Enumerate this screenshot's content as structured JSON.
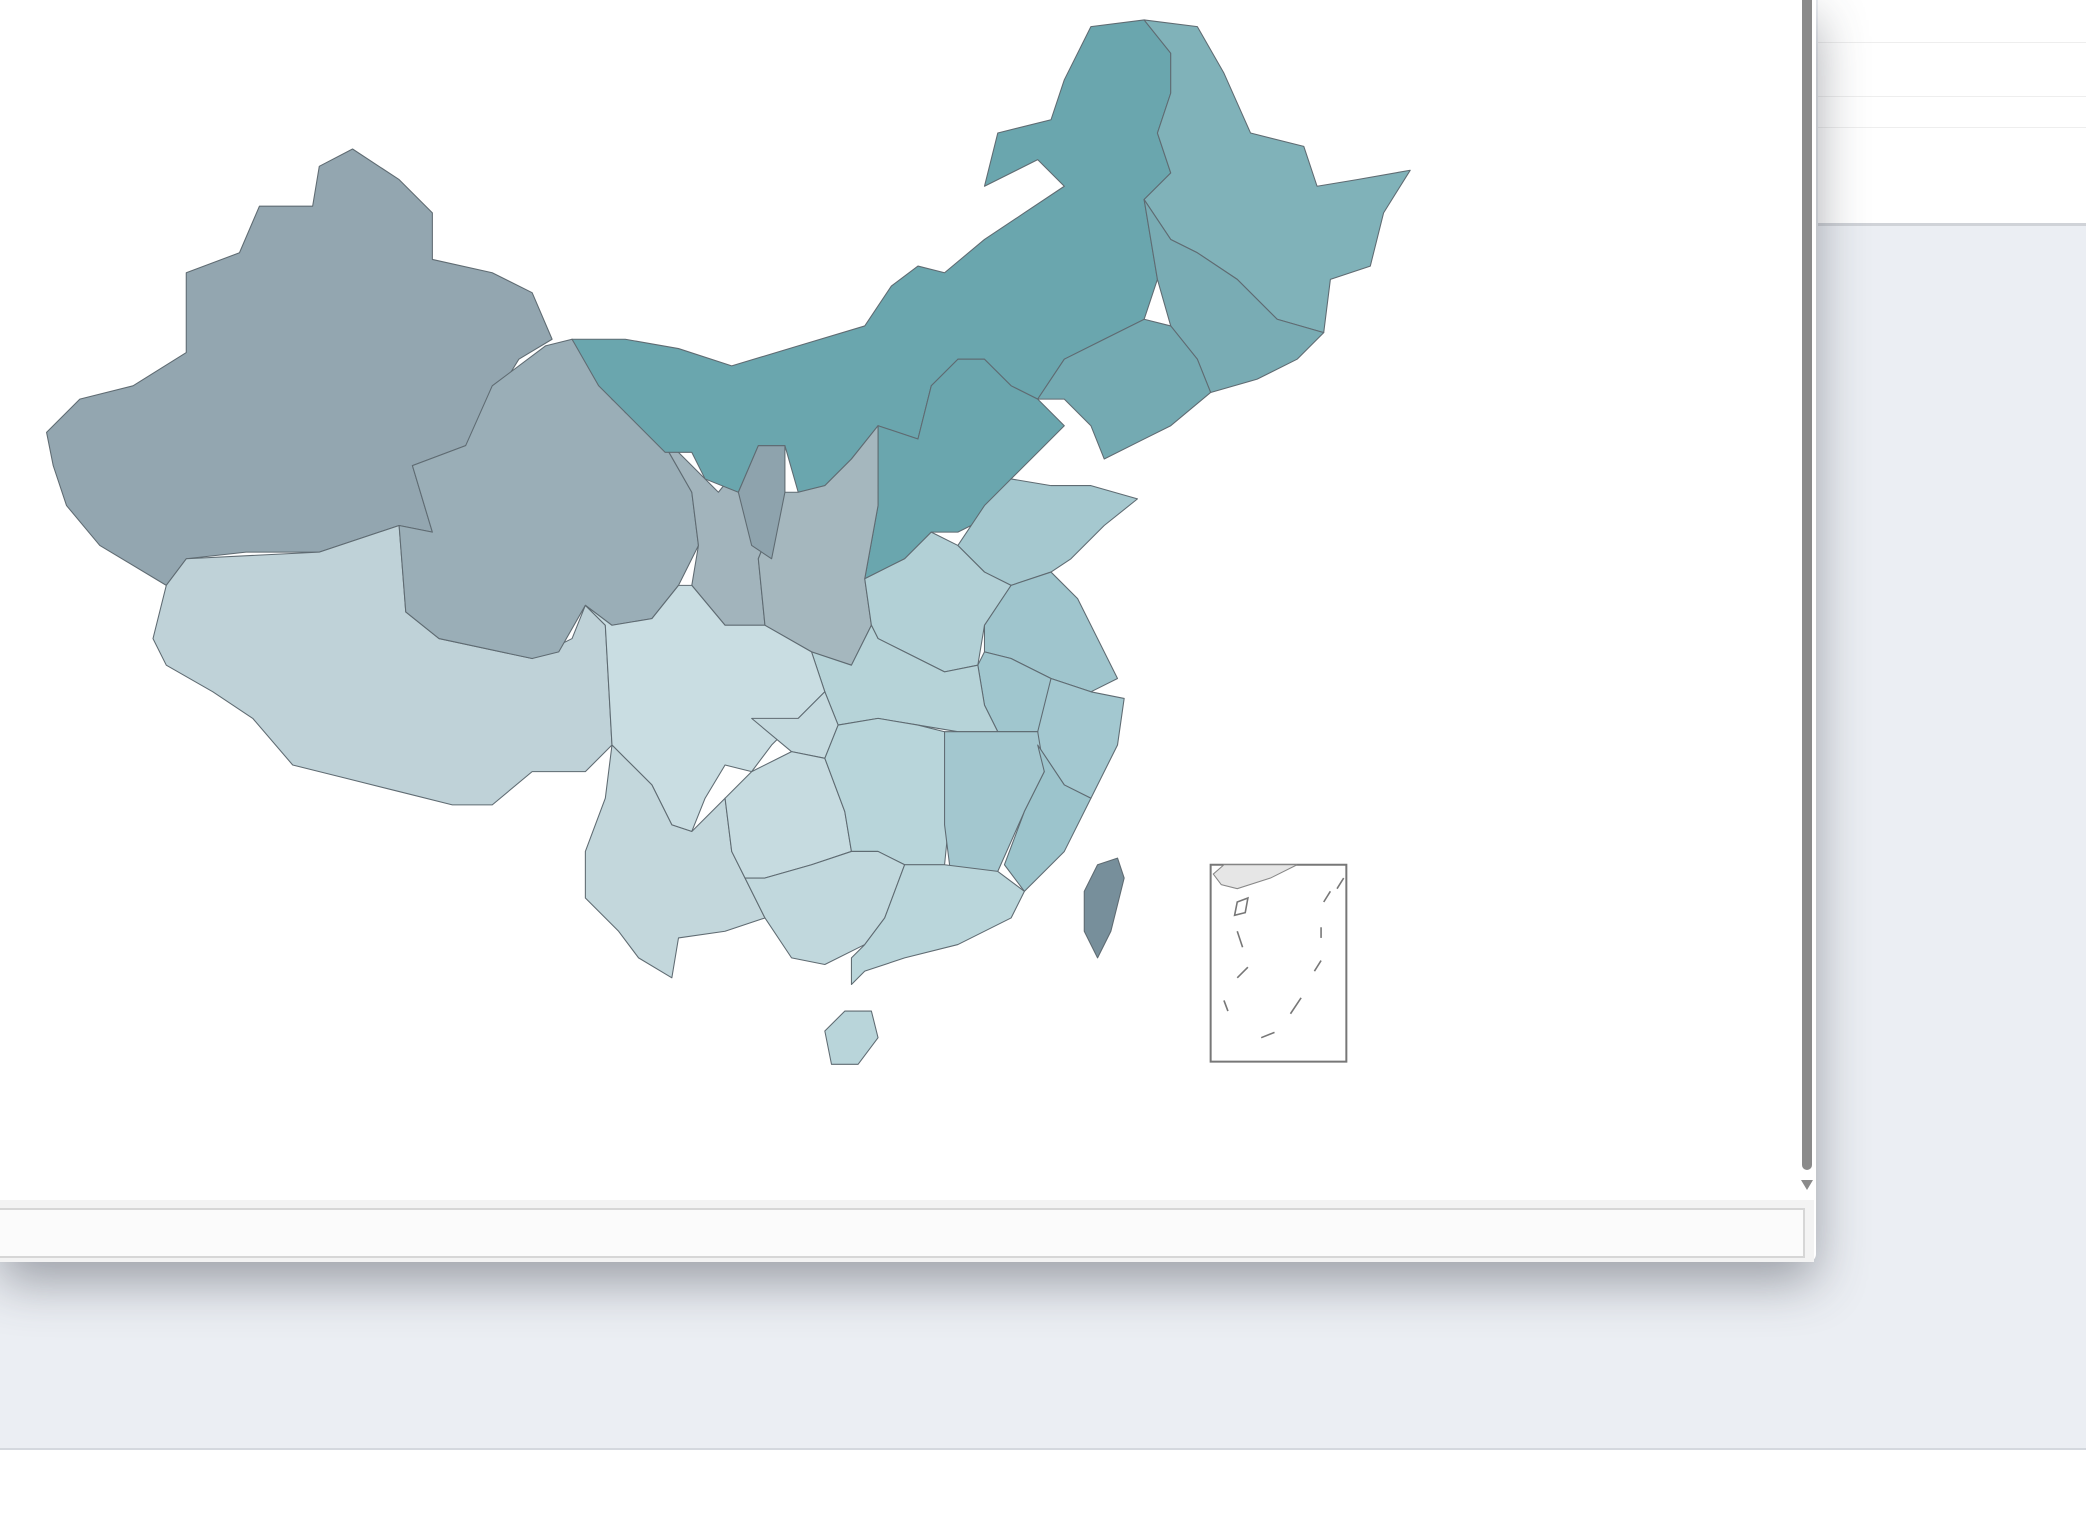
{
  "map": {
    "stroke_color": "#5f6b72",
    "regions": {
      "xinjiang": "#93a6b0",
      "tibet": "#bfd2d8",
      "qinghai": "#9aaeb7",
      "gansu": "#a2b4bc",
      "inner-mongolia": "#6aa6ae",
      "heilongjiang": "#80b2b9",
      "jilin": "#79acb4",
      "liaoning": "#74aab2",
      "hebei-shanxi": "#6aa6ae",
      "shaanxi": "#a5b7be",
      "ningxia": "#8ea3ad",
      "shandong": "#a5c8cf",
      "henan": "#b2d0d6",
      "jiangsu": "#9fc5cd",
      "anhui": "#a0c6ce",
      "zhejiang": "#a3c8d0",
      "hubei": "#b6d3d8",
      "sichuan": "#c9dde2",
      "chongqing": "#c5dadf",
      "yunnan": "#c3d7dc",
      "guizhou": "#c6dbe0",
      "hunan": "#b8d5da",
      "jiangxi": "#a3c7cf",
      "fujian": "#9cc4cc",
      "guangxi": "#c1d8dd",
      "guangdong": "#bad6db",
      "hainan": "#b9d5da",
      "taiwan": "#778f9b"
    },
    "south-china-sea-inset": true
  },
  "colors": {
    "background": "#ebeef3",
    "window": "#ffffff",
    "scrollbar": "#8a8a8a"
  }
}
